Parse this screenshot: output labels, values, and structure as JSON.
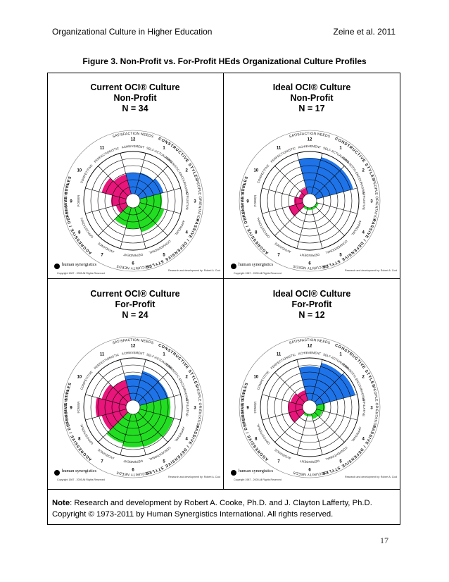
{
  "header": {
    "left": "Organizational Culture in Higher Education",
    "right": "Zeine et al. 2011"
  },
  "figure_title": "Figure 3. Non-Profit vs. For-Profit HEds Organizational Culture Profiles",
  "circumplex_labels": {
    "top": "SATISFACTION NEEDS",
    "bottom": "SECURITY NEEDS",
    "left": "TASK ORIENTATION",
    "right": "PEOPLE ORIENTATION",
    "constructive": "CONSTRUCTIVE STYLES",
    "passive": "PASSIVE / DEFENSIVE STYLES",
    "aggressive": "AGGRESSIVE / DEFENSIVE STYLES",
    "styles": [
      "SELF-ACTUALIZING",
      "HUMANISTIC-ENCOURAGING",
      "AFFILIATIVE",
      "APPROVAL",
      "CONVENTIONAL",
      "DEPENDENT",
      "AVOIDANCE",
      "OPPOSITIONAL",
      "POWER",
      "COMPETITIVE",
      "PERFECTIONISTIC",
      "ACHIEVEMENT"
    ],
    "numbers": [
      "12",
      "1",
      "2",
      "3",
      "4",
      "5",
      "6",
      "7",
      "8",
      "9",
      "10",
      "11"
    ],
    "logo": "human synergistics",
    "copyright": "Copyright 1987 - 2005 All Rights Reserved",
    "credit": "Research and development by: Robert A. Cooke, Ph.D. J. Clayton Lafferty, Ph.D."
  },
  "colors": {
    "constructive": "#1e73e8",
    "passive": "#22dd22",
    "aggressive": "#e8157a"
  },
  "panels": [
    {
      "title": [
        "Current OCI® Culture",
        "Non-Profit",
        "N = 34"
      ],
      "values": {
        "constructive": [
          0.5,
          0.52,
          0.58
        ],
        "passive": [
          0.52,
          0.6,
          0.6,
          0.5,
          0.45
        ],
        "aggressive": [
          0.25,
          0.35,
          0.6,
          0.48,
          0.42
        ]
      }
    },
    {
      "title": [
        "Ideal OCI® Culture",
        "Non-Profit",
        "N = 17"
      ],
      "values": {
        "constructive": [
          0.85,
          0.9,
          0.9
        ],
        "passive": [
          0.0,
          0.05,
          0.05,
          0.05,
          0.05
        ],
        "aggressive": [
          0.35,
          0.2,
          0.1,
          0.15,
          0.6
        ]
      }
    },
    {
      "title": [
        "Current OCI® Culture",
        "For-Profit",
        "N = 24"
      ],
      "values": {
        "constructive": [
          0.6,
          0.72,
          0.7
        ],
        "passive": [
          0.72,
          0.82,
          0.8,
          0.78,
          0.72
        ],
        "aggressive": [
          0.6,
          0.72,
          0.6,
          0.5,
          0.55
        ]
      }
    },
    {
      "title": [
        "Ideal OCI® Culture",
        "For-Profit",
        "N = 12"
      ],
      "values": {
        "constructive": [
          0.8,
          0.92,
          0.95
        ],
        "passive": [
          0.2,
          0.15,
          0.12,
          0.05,
          0.05
        ],
        "aggressive": [
          0.35,
          0.35,
          0.3,
          0.25,
          0.4
        ]
      }
    }
  ],
  "note": {
    "label": "Note",
    "text": ": Research and development by Robert A. Cooke, Ph.D. and J. Clayton Lafferty, Ph.D. Copyright © 1973-2011 by Human Synergistics International. All rights reserved."
  },
  "page_number": "17"
}
